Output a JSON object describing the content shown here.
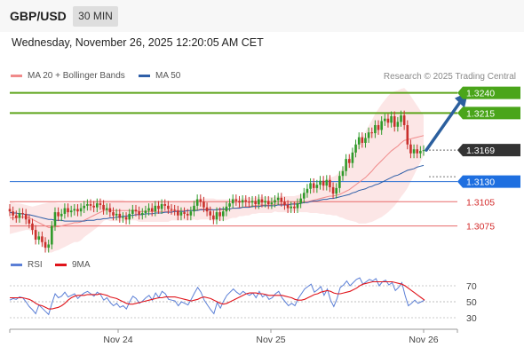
{
  "header": {
    "symbol": "GBP/USD",
    "interval": "30 MIN",
    "datetime": "Wednesday, November 26, 2025 12:20:05 AM CET",
    "credit": "Research © 2025 Trading Central"
  },
  "colors": {
    "up_candle": "#2f9a2a",
    "down_candle": "#c9302c",
    "resistance": "#5ea51b",
    "pivot": "#2a6fd4",
    "support": "#e86a6a",
    "last_price": "#333333",
    "ma20": "#f08a8a",
    "ma50": "#2f5fa8",
    "bollinger_fill": "#fbdcdc",
    "arrow": "#2b5f9e",
    "rsi": "#5b7fd6",
    "rsi_ma": "#e0141b"
  },
  "chart_data": [
    {
      "type": "candlestick",
      "title": "GBP/USD",
      "legend": [
        "MA 20 + Bollinger Bands",
        "MA 50"
      ],
      "legend_position": "top-left",
      "ylim": [
        1.3025,
        1.3255
      ],
      "x_ticks": [
        "Nov 24",
        "Nov 25",
        "Nov 26"
      ],
      "levels": [
        {
          "value": 1.324,
          "label": "1.3240",
          "kind": "resistance"
        },
        {
          "value": 1.3215,
          "label": "1.3215",
          "kind": "resistance"
        },
        {
          "value": 1.3169,
          "label": "1.3169",
          "kind": "last"
        },
        {
          "value": 1.313,
          "label": "1.3130",
          "kind": "pivot"
        },
        {
          "value": 1.3105,
          "label": "1.3105",
          "kind": "support"
        },
        {
          "value": 1.3075,
          "label": "1.3075",
          "kind": "support"
        }
      ],
      "close": [
        1.3093,
        1.3088,
        1.3085,
        1.3091,
        1.309,
        1.3083,
        1.3078,
        1.307,
        1.3058,
        1.3062,
        1.3055,
        1.3048,
        1.3052,
        1.3075,
        1.3092,
        1.3087,
        1.309,
        1.3097,
        1.3092,
        1.3094,
        1.3096,
        1.3093,
        1.3097,
        1.31,
        1.3102,
        1.31,
        1.3098,
        1.3103,
        1.3101,
        1.3095,
        1.3097,
        1.3092,
        1.3088,
        1.309,
        1.3085,
        1.3086,
        1.3083,
        1.309,
        1.3095,
        1.3093,
        1.3089,
        1.3091,
        1.3094,
        1.3097,
        1.3093,
        1.31,
        1.3096,
        1.3102,
        1.31,
        1.3096,
        1.3095,
        1.3094,
        1.3088,
        1.3092,
        1.309,
        1.3088,
        1.3093,
        1.31,
        1.3108,
        1.3105,
        1.3098,
        1.3093,
        1.3088,
        1.3083,
        1.3092,
        1.3087,
        1.3093,
        1.3099,
        1.3103,
        1.3108,
        1.3106,
        1.3104,
        1.3107,
        1.3105,
        1.3104,
        1.3106,
        1.3102,
        1.3108,
        1.3104,
        1.3106,
        1.3102,
        1.3104,
        1.3107,
        1.311,
        1.3105,
        1.3101,
        1.3097,
        1.3099,
        1.3097,
        1.3103,
        1.3109,
        1.3116,
        1.3121,
        1.3128,
        1.3122,
        1.3126,
        1.3131,
        1.3125,
        1.3132,
        1.3123,
        1.3115,
        1.3122,
        1.3137,
        1.3143,
        1.3158,
        1.3153,
        1.3166,
        1.3176,
        1.3185,
        1.3178,
        1.3184,
        1.3191,
        1.319,
        1.32,
        1.3194,
        1.3205,
        1.3208,
        1.3203,
        1.3211,
        1.3198,
        1.3204,
        1.3212,
        1.32,
        1.3176,
        1.3165,
        1.317,
        1.3165,
        1.3168,
        1.3169
      ],
      "ma20": [
        1.3085,
        1.3085,
        1.3085,
        1.3086,
        1.3086,
        1.3086,
        1.3085,
        1.3083,
        1.3081,
        1.3079,
        1.3077,
        1.3075,
        1.3073,
        1.3073,
        1.3074,
        1.3074,
        1.3075,
        1.3076,
        1.3077,
        1.3078,
        1.3079,
        1.3079,
        1.308,
        1.3082,
        1.3084,
        1.3086,
        1.3088,
        1.309,
        1.3092,
        1.3094,
        1.3095,
        1.3094,
        1.3094,
        1.3094,
        1.3094,
        1.3094,
        1.3094,
        1.3094,
        1.3094,
        1.3094,
        1.3093,
        1.3093,
        1.3093,
        1.3093,
        1.3093,
        1.3093,
        1.3093,
        1.3093,
        1.3093,
        1.3093,
        1.3094,
        1.3094,
        1.3094,
        1.3094,
        1.3094,
        1.3094,
        1.3094,
        1.3095,
        1.3095,
        1.3096,
        1.3096,
        1.3096,
        1.3096,
        1.3095,
        1.3095,
        1.3095,
        1.3095,
        1.3095,
        1.3096,
        1.3097,
        1.3097,
        1.3098,
        1.3098,
        1.3099,
        1.3099,
        1.31,
        1.31,
        1.3101,
        1.3101,
        1.3101,
        1.3101,
        1.3101,
        1.3102,
        1.3102,
        1.3102,
        1.3102,
        1.3102,
        1.3102,
        1.3103,
        1.3103,
        1.3103,
        1.3104,
        1.3105,
        1.3106,
        1.3107,
        1.3108,
        1.3109,
        1.311,
        1.3111,
        1.3112,
        1.3112,
        1.3113,
        1.3114,
        1.3116,
        1.3118,
        1.312,
        1.3123,
        1.3126,
        1.3129,
        1.3132,
        1.3135,
        1.3139,
        1.3143,
        1.3148,
        1.3152,
        1.3156,
        1.316,
        1.3164,
        1.3168,
        1.3171,
        1.3174,
        1.3178,
        1.3181,
        1.3182,
        1.3183,
        1.3184,
        1.3185,
        1.3186,
        1.3187
      ],
      "ma50": [
        1.3092,
        1.3091,
        1.3091,
        1.309,
        1.309,
        1.3089,
        1.3089,
        1.3088,
        1.3087,
        1.3086,
        1.3085,
        1.3084,
        1.3083,
        1.3083,
        1.3082,
        1.3082,
        1.3082,
        1.3081,
        1.3081,
        1.3081,
        1.3081,
        1.3081,
        1.3081,
        1.3081,
        1.3082,
        1.3082,
        1.3082,
        1.3083,
        1.3083,
        1.3084,
        1.3084,
        1.3085,
        1.3085,
        1.3086,
        1.3086,
        1.3087,
        1.3087,
        1.3088,
        1.3088,
        1.3089,
        1.3089,
        1.3089,
        1.309,
        1.309,
        1.309,
        1.3091,
        1.3091,
        1.3091,
        1.3092,
        1.3092,
        1.3092,
        1.3093,
        1.3093,
        1.3093,
        1.3093,
        1.3094,
        1.3094,
        1.3094,
        1.3094,
        1.3095,
        1.3095,
        1.3095,
        1.3095,
        1.3095,
        1.3095,
        1.3096,
        1.3096,
        1.3096,
        1.3096,
        1.3097,
        1.3097,
        1.3097,
        1.3098,
        1.3098,
        1.3098,
        1.3099,
        1.3099,
        1.3099,
        1.31,
        1.31,
        1.31,
        1.31,
        1.31,
        1.3101,
        1.3101,
        1.3101,
        1.3101,
        1.3102,
        1.3102,
        1.3102,
        1.3103,
        1.3104,
        1.3104,
        1.3105,
        1.3106,
        1.3106,
        1.3107,
        1.3108,
        1.3108,
        1.3109,
        1.3109,
        1.311,
        1.3111,
        1.3112,
        1.3113,
        1.3114,
        1.3116,
        1.3117,
        1.3119,
        1.312,
        1.3121,
        1.3123,
        1.3124,
        1.3126,
        1.3127,
        1.3129,
        1.3131,
        1.3133,
        1.3135,
        1.3137,
        1.3138,
        1.314,
        1.3142,
        1.3144,
        1.3145,
        1.3146,
        1.3148,
        1.3149,
        1.315
      ],
      "bollinger_upper": [
        1.3105,
        1.3104,
        1.3103,
        1.3103,
        1.3102,
        1.3101,
        1.31,
        1.3099,
        1.31,
        1.3101,
        1.3102,
        1.3103,
        1.3104,
        1.3104,
        1.3104,
        1.3103,
        1.3103,
        1.3103,
        1.3103,
        1.3103,
        1.3103,
        1.3103,
        1.3103,
        1.3103,
        1.3104,
        1.3105,
        1.3106,
        1.3107,
        1.3107,
        1.3107,
        1.3107,
        1.3107,
        1.3107,
        1.3107,
        1.3107,
        1.3107,
        1.3106,
        1.3106,
        1.3106,
        1.3106,
        1.3106,
        1.3106,
        1.3106,
        1.3106,
        1.3106,
        1.3106,
        1.3106,
        1.3106,
        1.3106,
        1.3106,
        1.3106,
        1.3106,
        1.3106,
        1.3106,
        1.3106,
        1.3106,
        1.3106,
        1.3107,
        1.3108,
        1.3109,
        1.3109,
        1.3109,
        1.3109,
        1.3109,
        1.3108,
        1.3108,
        1.3108,
        1.3108,
        1.3108,
        1.3109,
        1.3109,
        1.3109,
        1.3109,
        1.311,
        1.311,
        1.311,
        1.311,
        1.3111,
        1.3111,
        1.3111,
        1.3111,
        1.3111,
        1.3111,
        1.3112,
        1.3112,
        1.3112,
        1.3112,
        1.3112,
        1.3112,
        1.3113,
        1.3114,
        1.3116,
        1.3118,
        1.3121,
        1.3123,
        1.3125,
        1.3128,
        1.313,
        1.3133,
        1.3135,
        1.3136,
        1.3138,
        1.3142,
        1.3147,
        1.3153,
        1.3158,
        1.3165,
        1.3172,
        1.318,
        1.3186,
        1.3192,
        1.3199,
        1.3206,
        1.3214,
        1.322,
        1.3226,
        1.3231,
        1.3236,
        1.324,
        1.3242,
        1.3243,
        1.3245,
        1.3246,
        1.3242,
        1.3236,
        1.323,
        1.3224,
        1.3218,
        1.3212
      ],
      "bollinger_lower": [
        1.3065,
        1.3066,
        1.3067,
        1.3068,
        1.3069,
        1.307,
        1.307,
        1.3067,
        1.3062,
        1.3057,
        1.3052,
        1.3047,
        1.3042,
        1.3042,
        1.3044,
        1.3045,
        1.3047,
        1.3049,
        1.3051,
        1.3053,
        1.3055,
        1.3055,
        1.3057,
        1.3061,
        1.3064,
        1.3067,
        1.307,
        1.3073,
        1.3077,
        1.3081,
        1.3083,
        1.3081,
        1.3081,
        1.3081,
        1.3081,
        1.3081,
        1.3082,
        1.3082,
        1.3082,
        1.3082,
        1.308,
        1.308,
        1.308,
        1.308,
        1.308,
        1.308,
        1.308,
        1.308,
        1.308,
        1.308,
        1.3082,
        1.3082,
        1.3082,
        1.3082,
        1.3082,
        1.3082,
        1.3082,
        1.3083,
        1.3082,
        1.3083,
        1.3083,
        1.3083,
        1.3083,
        1.3081,
        1.3082,
        1.3082,
        1.3082,
        1.3082,
        1.3084,
        1.3085,
        1.3085,
        1.3087,
        1.3087,
        1.3088,
        1.3088,
        1.309,
        1.309,
        1.3091,
        1.3091,
        1.3091,
        1.3091,
        1.3091,
        1.3093,
        1.3092,
        1.3092,
        1.3092,
        1.3092,
        1.3092,
        1.3094,
        1.3093,
        1.3092,
        1.3092,
        1.3092,
        1.3091,
        1.3091,
        1.3091,
        1.309,
        1.309,
        1.3089,
        1.3089,
        1.3088,
        1.3088,
        1.3086,
        1.3085,
        1.3083,
        1.3082,
        1.3081,
        1.308,
        1.3078,
        1.3078,
        1.3078,
        1.3079,
        1.308,
        1.3082,
        1.3084,
        1.3086,
        1.3089,
        1.3092,
        1.3096,
        1.31,
        1.3105,
        1.3111,
        1.3116,
        1.3122,
        1.313,
        1.3138,
        1.3146,
        1.3154,
        1.3162
      ]
    },
    {
      "type": "line",
      "title": "RSI",
      "legend": [
        "RSI",
        "9MA"
      ],
      "legend_position": "top-left",
      "ylim": [
        20,
        80
      ],
      "y_ticks": [
        70,
        50,
        30
      ],
      "rsi": [
        52,
        54,
        53,
        56,
        55,
        50,
        44,
        40,
        35,
        46,
        42,
        38,
        34,
        48,
        60,
        55,
        57,
        62,
        56,
        58,
        60,
        54,
        58,
        61,
        63,
        60,
        57,
        62,
        59,
        52,
        55,
        49,
        45,
        48,
        43,
        45,
        41,
        50,
        57,
        54,
        48,
        51,
        55,
        58,
        52,
        61,
        55,
        63,
        60,
        53,
        52,
        51,
        45,
        50,
        48,
        46,
        53,
        61,
        68,
        62,
        52,
        46,
        40,
        35,
        49,
        42,
        51,
        58,
        62,
        66,
        62,
        59,
        63,
        60,
        58,
        61,
        55,
        63,
        56,
        59,
        53,
        55,
        60,
        63,
        55,
        50,
        45,
        48,
        45,
        54,
        60,
        66,
        69,
        72,
        62,
        65,
        69,
        58,
        66,
        52,
        44,
        54,
        68,
        71,
        76,
        70,
        74,
        78,
        80,
        72,
        75,
        78,
        76,
        79,
        70,
        75,
        77,
        71,
        74,
        64,
        68,
        74,
        58,
        45,
        48,
        52,
        48,
        50,
        52
      ],
      "ma9": [
        55,
        55,
        55,
        55,
        55,
        54,
        53,
        51,
        48,
        46,
        45,
        43,
        41,
        41,
        42,
        43,
        45,
        48,
        52,
        55,
        57,
        58,
        58,
        58,
        59,
        59,
        59,
        59,
        60,
        59,
        58,
        56,
        55,
        54,
        52,
        50,
        48,
        47,
        47,
        48,
        49,
        50,
        51,
        52,
        53,
        54,
        55,
        55,
        56,
        56,
        56,
        56,
        55,
        54,
        53,
        52,
        51,
        52,
        53,
        55,
        56,
        55,
        54,
        52,
        50,
        48,
        47,
        48,
        50,
        52,
        54,
        56,
        58,
        60,
        61,
        61,
        61,
        60,
        60,
        59,
        58,
        58,
        58,
        58,
        58,
        57,
        56,
        55,
        53,
        52,
        52,
        53,
        55,
        57,
        59,
        60,
        62,
        63,
        64,
        63,
        61,
        60,
        60,
        61,
        62,
        63,
        65,
        67,
        70,
        72,
        73,
        74,
        75,
        75,
        75,
        75,
        75,
        75,
        75,
        74,
        73,
        72,
        70,
        67,
        64,
        61,
        58,
        55,
        52
      ]
    }
  ]
}
